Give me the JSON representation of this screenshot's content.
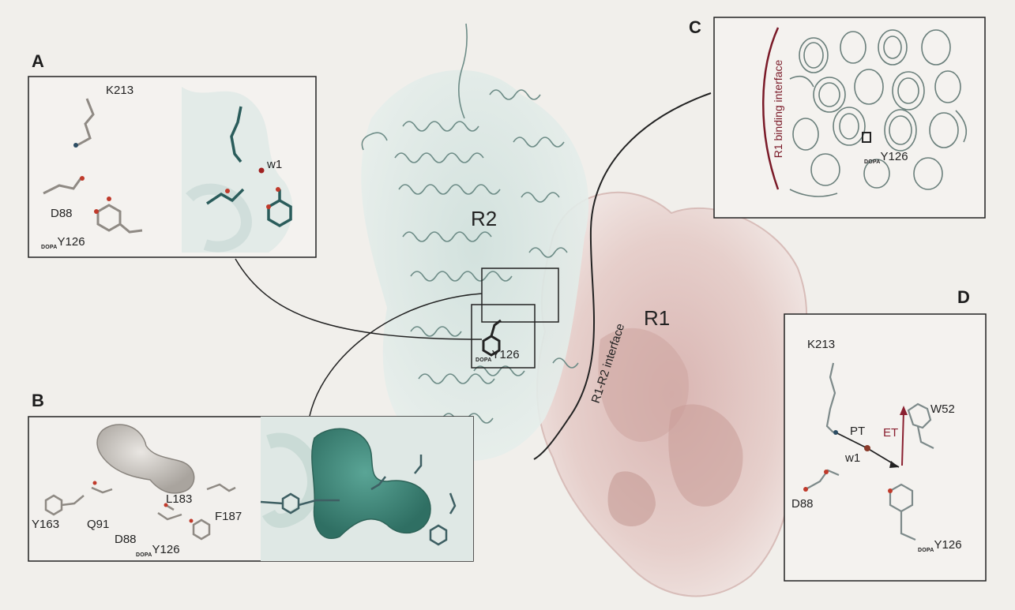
{
  "panels": {
    "a": {
      "letter": "A",
      "k213": "K213",
      "w1": "w1",
      "d88": "D88",
      "y126_sub": "DOPA",
      "y126": "Y126"
    },
    "b": {
      "letter": "B",
      "y163": "Y163",
      "q91": "Q91",
      "d88": "D88",
      "l183": "L183",
      "f187": "F187",
      "y126_sub": "DOPA",
      "y126": "Y126"
    },
    "c": {
      "letter": "C",
      "interface": "R1 binding interface",
      "y126_sub": "DOPA",
      "y126": "Y126"
    },
    "d": {
      "letter": "D",
      "k213": "K213",
      "w52": "W52",
      "pt": "PT",
      "et": "ET",
      "w1": "w1",
      "d88": "D88",
      "y126_sub": "DOPA",
      "y126": "Y126"
    }
  },
  "main": {
    "r2": "R2",
    "r1": "R1",
    "interface": "R1-R2 interface",
    "y126_sub": "DOPA",
    "y126": "Y126"
  },
  "colors": {
    "r2_teal": "#5f8f88",
    "r1_pink": "#c9a3a3",
    "et_arrow": "#8a2030",
    "cavity": "#3f8a7c"
  }
}
